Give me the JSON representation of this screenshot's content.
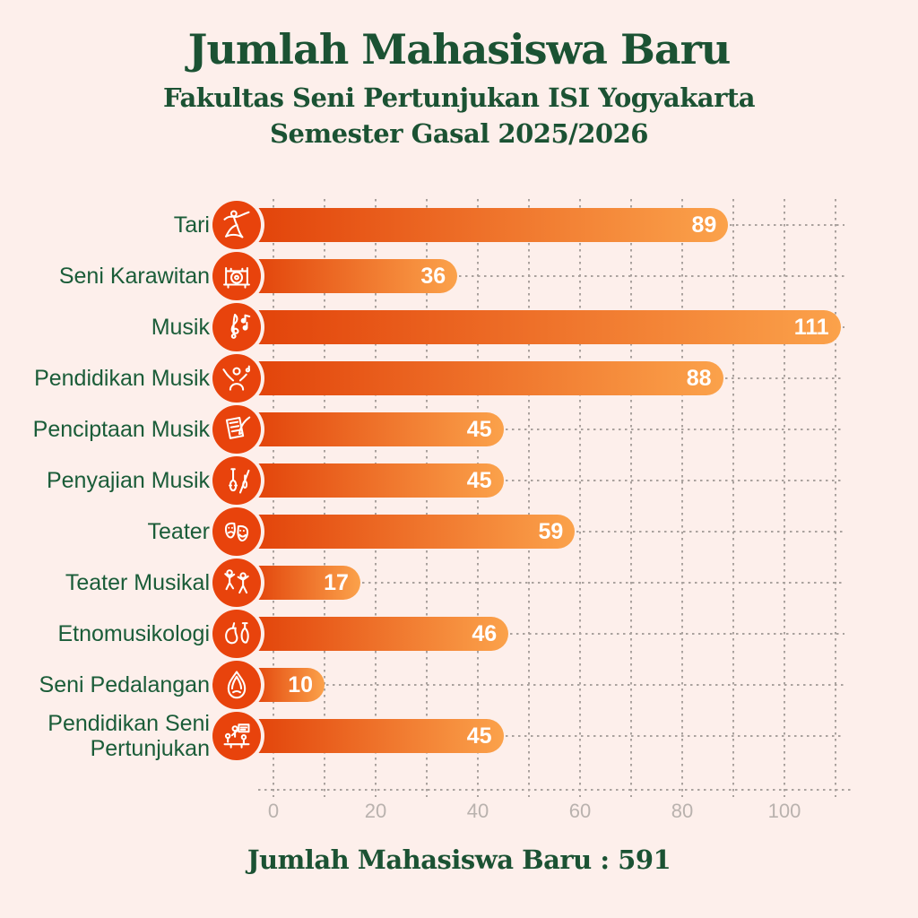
{
  "header": {
    "title": "Jumlah Mahasiswa Baru",
    "subtitle_line1": "Fakultas Seni Pertunjukan ISI Yogyakarta",
    "subtitle_line2": "Semester Gasal 2025/2026"
  },
  "footer": {
    "total_label": "Jumlah Mahasiswa Baru  : 591"
  },
  "chart_data": {
    "type": "bar",
    "orientation": "horizontal",
    "title": "Jumlah Mahasiswa Baru",
    "subtitle": "Fakultas Seni Pertunjukan ISI Yogyakarta — Semester Gasal 2025/2026",
    "categories": [
      "Tari",
      "Seni Karawitan",
      "Musik",
      "Pendidikan Musik",
      "Penciptaan Musik",
      "Penyajian Musik",
      "Teater",
      "Teater Musikal",
      "Etnomusikologi",
      "Seni Pedalangan",
      "Pendidikan Seni Pertunjukan"
    ],
    "values": [
      89,
      36,
      111,
      88,
      45,
      45,
      59,
      17,
      46,
      10,
      45
    ],
    "total": 591,
    "icons": [
      "dancer-icon",
      "gamelan-icon",
      "treble-clef-icon",
      "conductor-icon",
      "music-composition-icon",
      "string-ensemble-icon",
      "theater-masks-icon",
      "dancing-performers-icon",
      "ethnic-instruments-icon",
      "wayang-gunungan-icon",
      "classroom-icon"
    ],
    "xlabel": "",
    "ylabel": "",
    "xlim": [
      0,
      115
    ],
    "xticks": [
      0,
      20,
      40,
      60,
      80,
      100
    ],
    "minor_tick_step": 10,
    "grid": "dashed",
    "legend": "none",
    "colors": {
      "background": "#fdefeb",
      "title_green": "#1b5233",
      "label_green": "#1a5c38",
      "bar_gradient_start": "#e2430a",
      "bar_gradient_end": "#fba24b",
      "icon_circle_orange": "#e8430c",
      "value_text": "#ffffff",
      "grid_gray": "#aaa29e",
      "tick_label_gray": "#b9b2ae"
    }
  }
}
